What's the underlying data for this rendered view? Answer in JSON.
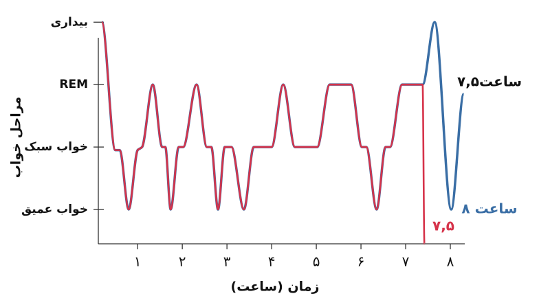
{
  "chart_data": {
    "type": "line",
    "x_label": "زمان (ساعت)",
    "y_label": "مراحل خواب",
    "annotation": "۷,۵ساعت",
    "xlim": [
      0.12,
      8.3
    ],
    "xticks": [
      {
        "value": 1,
        "label": "۱"
      },
      {
        "value": 2,
        "label": "۲"
      },
      {
        "value": 3,
        "label": "۳"
      },
      {
        "value": 4,
        "label": "۴"
      },
      {
        "value": 5,
        "label": "۵"
      },
      {
        "value": 6,
        "label": "۶"
      },
      {
        "value": 7,
        "label": "۷"
      },
      {
        "value": 8,
        "label": "۸"
      }
    ],
    "ylim": [
      -0.55,
      3.3
    ],
    "yticks": [
      {
        "value": 3,
        "label": "بیداری"
      },
      {
        "value": 2,
        "label": "REM"
      },
      {
        "value": 1,
        "label": "خواب سبک"
      },
      {
        "value": 0,
        "label": "خواب عمیق"
      }
    ],
    "series": [
      {
        "name": "۸ ساعت",
        "color": "#3a6ea5",
        "x": [
          0.2,
          0.5,
          0.6,
          0.8,
          1.0,
          1.1,
          1.34,
          1.55,
          1.62,
          1.74,
          1.92,
          2.02,
          2.32,
          2.55,
          2.65,
          2.8,
          2.95,
          3.1,
          3.38,
          3.6,
          4.0,
          4.26,
          4.52,
          5.02,
          5.3,
          5.78,
          6.02,
          6.12,
          6.35,
          6.55,
          6.65,
          6.92,
          7.38,
          7.65,
          8.02,
          8.3
        ],
        "values": [
          3,
          0.95,
          0.95,
          0,
          0.95,
          1,
          2,
          1,
          1,
          0,
          1,
          1,
          2,
          1,
          1,
          0,
          1,
          1,
          0,
          1,
          1,
          2,
          1,
          1,
          2,
          2,
          1,
          1,
          0,
          1,
          1,
          2,
          2,
          3,
          0,
          1.85
        ]
      },
      {
        "name": "۷,۵",
        "color": "#d6334a",
        "x": [
          0.2,
          0.5,
          0.6,
          0.8,
          1.0,
          1.1,
          1.34,
          1.55,
          1.62,
          1.74,
          1.92,
          2.02,
          2.32,
          2.55,
          2.65,
          2.8,
          2.95,
          3.1,
          3.38,
          3.6,
          4.0,
          4.26,
          4.52,
          5.02,
          5.3,
          5.78,
          6.02,
          6.12,
          6.35,
          6.55,
          6.65,
          6.92,
          7.38,
          7.42
        ],
        "values": [
          3,
          0.95,
          0.95,
          0,
          0.95,
          1,
          2,
          1,
          1,
          0,
          1,
          1,
          2,
          1,
          1,
          0,
          1,
          1,
          0,
          1,
          1,
          2,
          1,
          1,
          2,
          2,
          1,
          1,
          0,
          1,
          1,
          2,
          2,
          -0.55
        ]
      }
    ]
  }
}
